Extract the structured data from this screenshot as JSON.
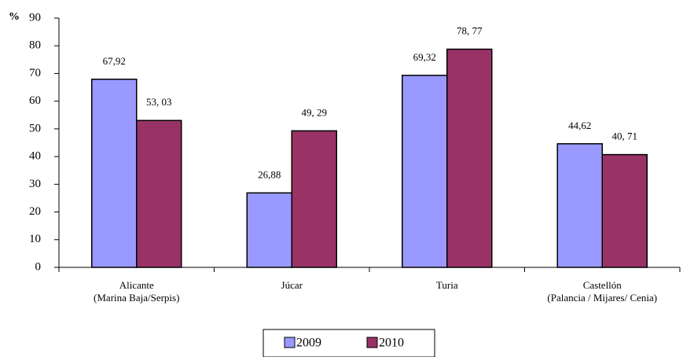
{
  "chart_data": {
    "type": "bar",
    "y_label": "%",
    "categories": [
      [
        "Alicante",
        "(Marina Baja/Serpis)"
      ],
      [
        "Júcar"
      ],
      [
        "Turia"
      ],
      [
        "Castellón",
        "(Palancia / Mijares/ Cenia)"
      ]
    ],
    "series": [
      {
        "name": "2009",
        "color": "#9999ff",
        "values": [
          67.92,
          26.88,
          69.32,
          44.62
        ],
        "value_labels": [
          "67,92",
          "26,88",
          "69,32",
          "44,62"
        ]
      },
      {
        "name": "2010",
        "color": "#993366",
        "values": [
          53.03,
          49.29,
          78.77,
          40.71
        ],
        "value_labels": [
          "53, 03",
          "49, 29",
          "78, 77",
          "40, 71"
        ]
      }
    ],
    "ylim": [
      0,
      90
    ],
    "yticks": [
      0,
      10,
      20,
      30,
      40,
      50,
      60,
      70,
      80,
      90
    ]
  }
}
